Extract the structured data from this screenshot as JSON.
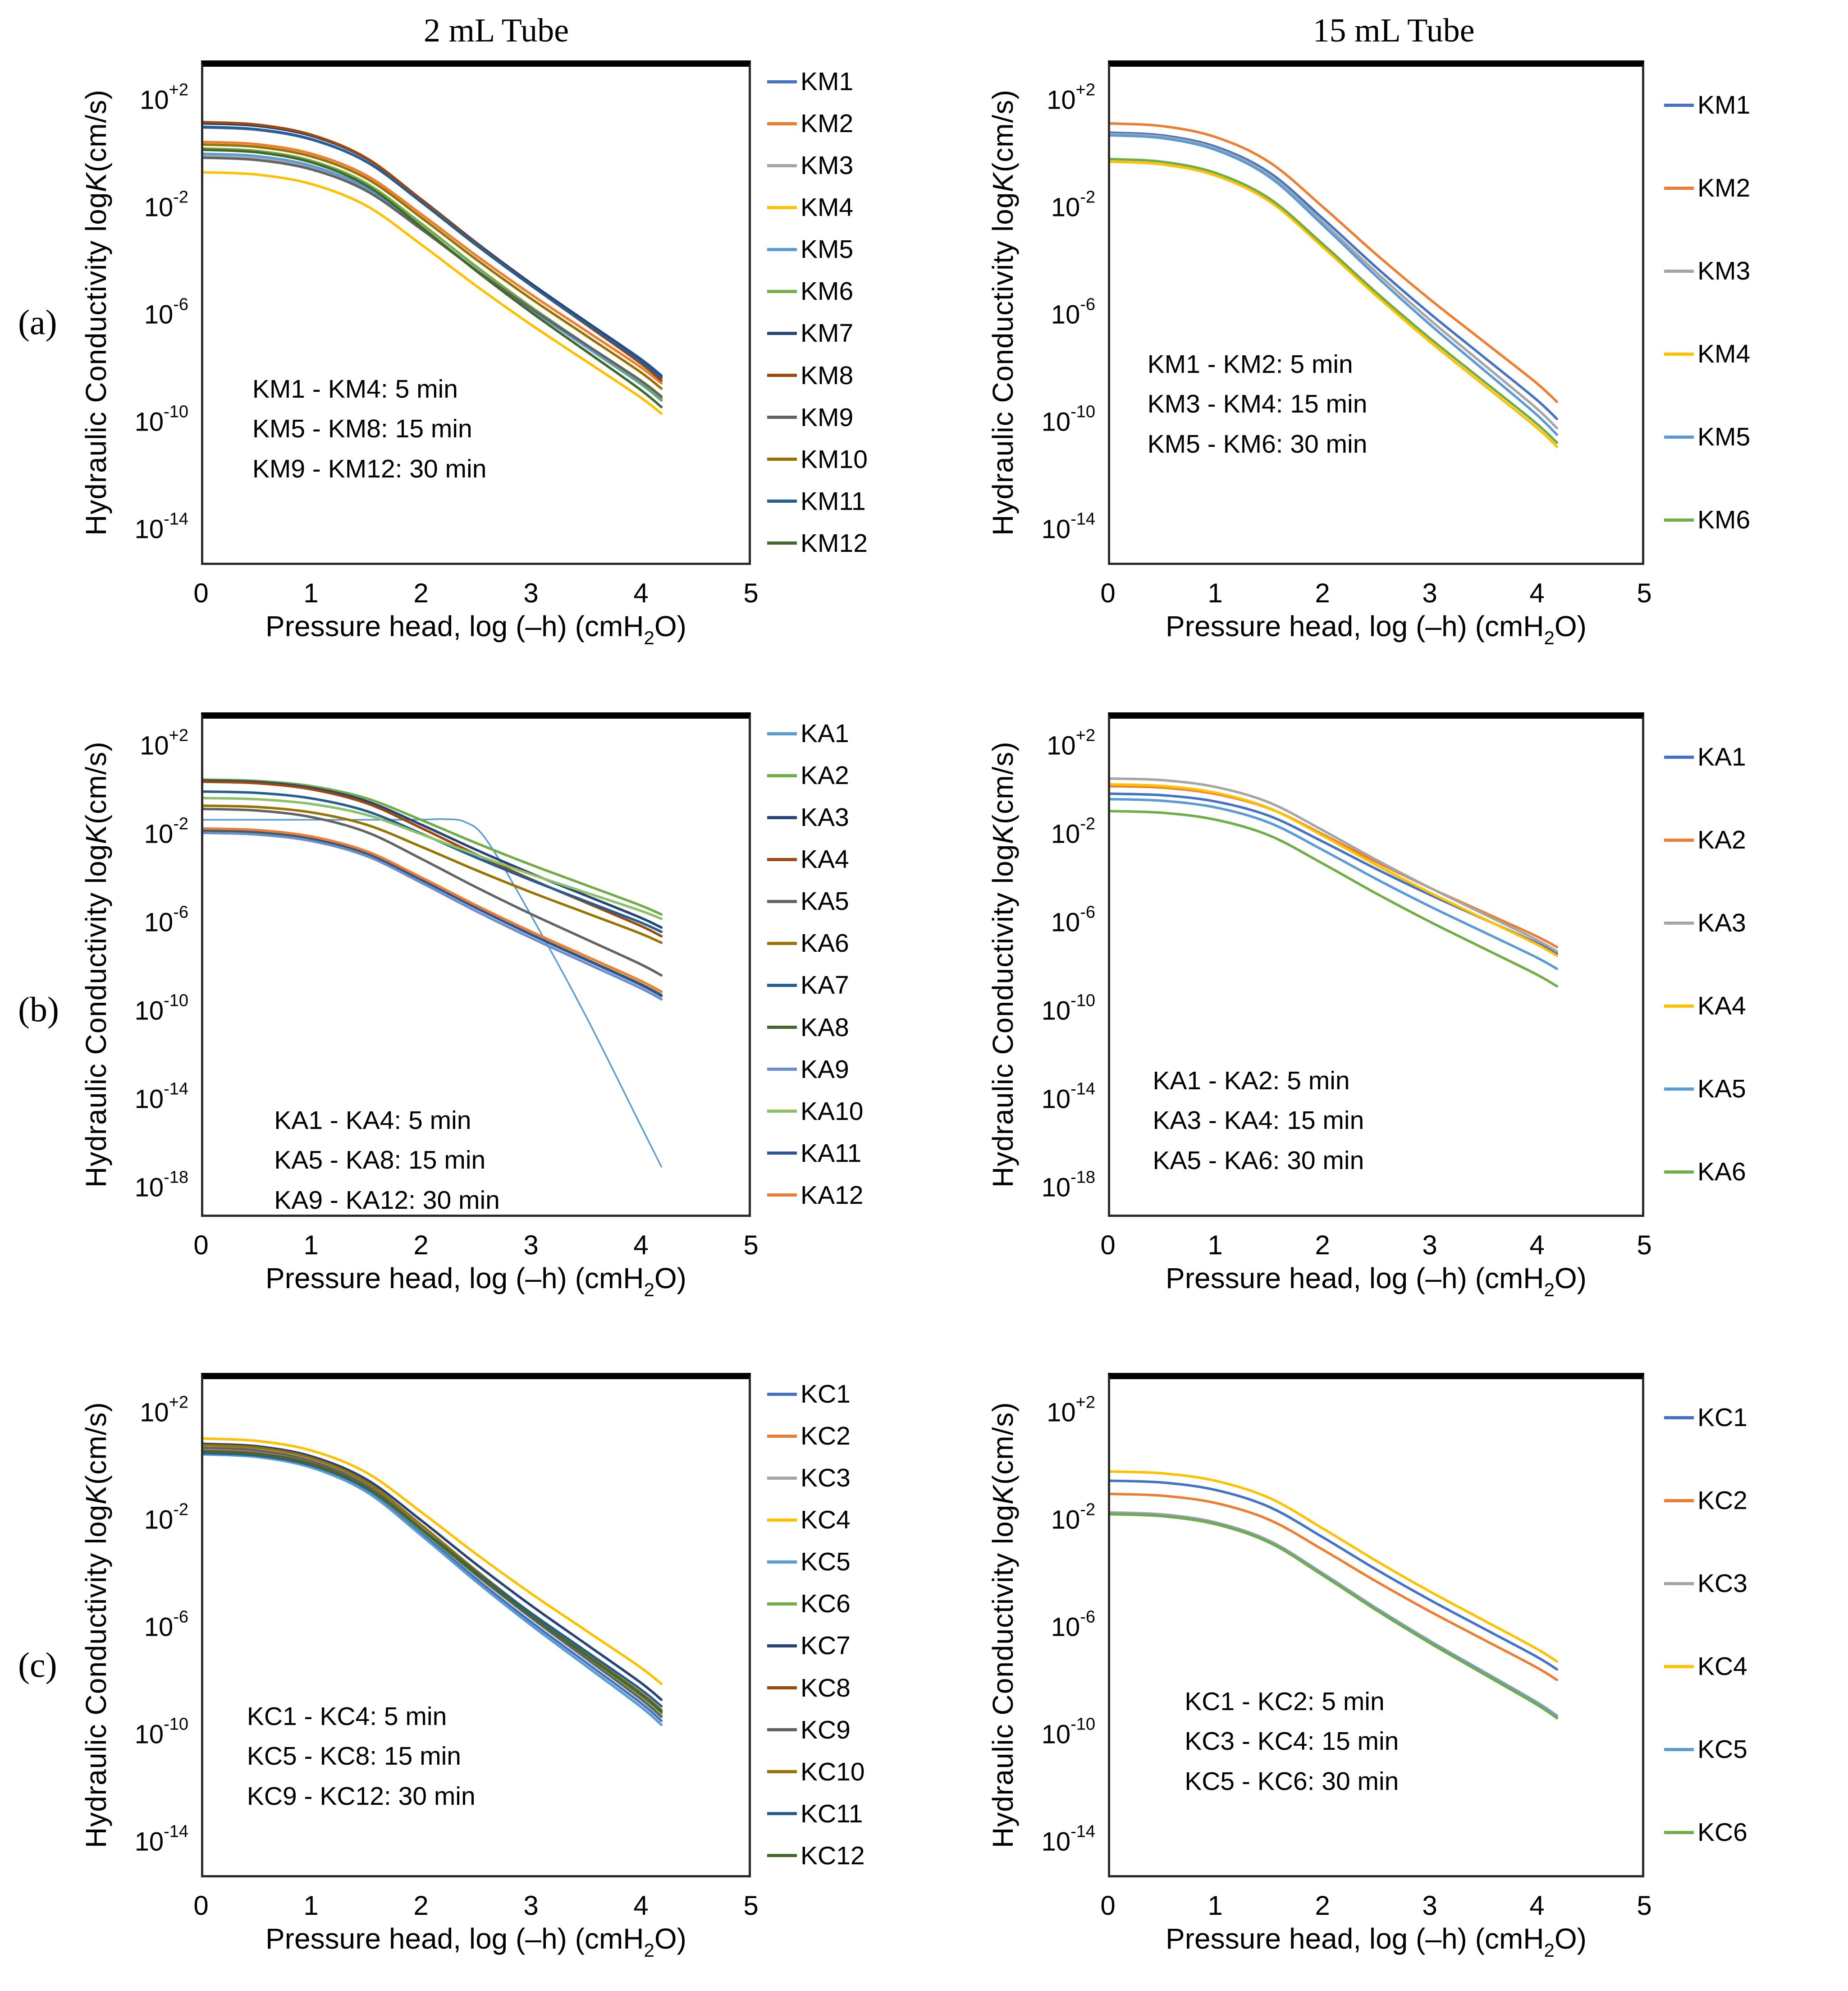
{
  "page": {
    "background": "#ffffff"
  },
  "panels": [
    "(a)",
    "(b)",
    "(c)"
  ],
  "column_titles": {
    "left": "2 mL Tube",
    "right": "15 mL Tube"
  },
  "axis": {
    "ylabel_parts": [
      "Hydraulic Conductivity log ",
      "K",
      " (cm/s)"
    ],
    "xlabel_parts": [
      "Pressure head, log (–h) (cmH",
      "2",
      "O)"
    ]
  },
  "chart_data": [
    {
      "id": "a-left",
      "type": "line",
      "title": "2 mL Tube",
      "ylabel": "Hydraulic Conductivity log K (cm/s)",
      "xlabel": "Pressure head, log (–h) (cmH2O)",
      "x_ticks": [
        0,
        1,
        2,
        3,
        4,
        5
      ],
      "x_domain": [
        0,
        5
      ],
      "y_tick_exponents": [
        "+2",
        "-2",
        "-6",
        "-10",
        "-14"
      ],
      "y_domain_exp": [
        3.4,
        -15.4
      ],
      "x_grid": [
        0,
        0.5,
        1,
        1.5,
        2,
        2.5,
        3,
        3.5,
        4,
        4.2
      ],
      "shape_fractions": [
        0,
        0.01,
        0.05,
        0.14,
        0.3,
        0.47,
        0.63,
        0.78,
        0.93,
        1
      ],
      "annotation": [
        "KM1 - KM4: 5 min",
        "KM5 - KM8: 15 min",
        "KM9 - KM12: 30 min"
      ],
      "annotation_pos": {
        "left": "9%",
        "top": "61%"
      },
      "series": [
        {
          "name": "KM1",
          "color": "#4472C4",
          "plateau_logK": 1.1,
          "end_logK": -8.3
        },
        {
          "name": "KM2",
          "color": "#ED7D31",
          "plateau_logK": 0.55,
          "end_logK": -8.6
        },
        {
          "name": "KM3",
          "color": "#A5A5A5",
          "plateau_logK": 0.0,
          "end_logK": -9.15
        },
        {
          "name": "KM4",
          "color": "#FFC000",
          "plateau_logK": -0.6,
          "end_logK": -9.75
        },
        {
          "name": "KM5",
          "color": "#5B9BD5",
          "plateau_logK": 0.1,
          "end_logK": -9.25
        },
        {
          "name": "KM6",
          "color": "#70AD47",
          "plateau_logK": 0.3,
          "end_logK": -9.2
        },
        {
          "name": "KM7",
          "color": "#264478",
          "plateau_logK": 1.25,
          "end_logK": -8.35
        },
        {
          "name": "KM8",
          "color": "#9E480E",
          "plateau_logK": 1.3,
          "end_logK": -8.5
        },
        {
          "name": "KM9",
          "color": "#636363",
          "plateau_logK": -0.05,
          "end_logK": -9.1
        },
        {
          "name": "KM10",
          "color": "#997300",
          "plateau_logK": 0.45,
          "end_logK": -8.8
        },
        {
          "name": "KM11",
          "color": "#255E91",
          "plateau_logK": 1.12,
          "end_logK": -8.4
        },
        {
          "name": "KM12",
          "color": "#43682B",
          "plateau_logK": 0.25,
          "end_logK": -9.5
        }
      ]
    },
    {
      "id": "a-right",
      "type": "line",
      "title": "15 mL Tube",
      "ylabel": "Hydraulic Conductivity log K (cm/s)",
      "xlabel": "Pressure head, log (–h) (cmH2O)",
      "x_ticks": [
        0,
        1,
        2,
        3,
        4,
        5
      ],
      "x_domain": [
        0,
        5
      ],
      "y_tick_exponents": [
        "+2",
        "-2",
        "-6",
        "-10",
        "-14"
      ],
      "y_domain_exp": [
        3.4,
        -15.4
      ],
      "x_grid": [
        0,
        0.5,
        1,
        1.5,
        2,
        2.5,
        3,
        3.5,
        4,
        4.2
      ],
      "shape_fractions": [
        0,
        0.01,
        0.05,
        0.14,
        0.3,
        0.47,
        0.63,
        0.78,
        0.93,
        1
      ],
      "annotation": [
        "KM1 - KM2: 5 min",
        "KM3 - KM4: 15 min",
        "KM5 - KM6: 30 min"
      ],
      "annotation_pos": {
        "left": "7%",
        "top": "56%"
      },
      "series": [
        {
          "name": "KM1",
          "color": "#4472C4",
          "plateau_logK": 0.9,
          "end_logK": -9.95
        },
        {
          "name": "KM2",
          "color": "#ED7D31",
          "plateau_logK": 1.25,
          "end_logK": -9.3
        },
        {
          "name": "KM3",
          "color": "#A5A5A5",
          "plateau_logK": 0.85,
          "end_logK": -10.3
        },
        {
          "name": "KM4",
          "color": "#FFC000",
          "plateau_logK": -0.2,
          "end_logK": -11.0
        },
        {
          "name": "KM5",
          "color": "#5B9BD5",
          "plateau_logK": 0.8,
          "end_logK": -10.55
        },
        {
          "name": "KM6",
          "color": "#70AD47",
          "plateau_logK": -0.1,
          "end_logK": -10.85
        }
      ]
    },
    {
      "id": "b-left",
      "type": "line",
      "title": "",
      "ylabel": "Hydraulic Conductivity log K (cm/s)",
      "xlabel": "Pressure head, log (–h) (cmH2O)",
      "x_ticks": [
        0,
        1,
        2,
        3,
        4,
        5
      ],
      "x_domain": [
        0,
        5
      ],
      "y_tick_exponents": [
        "+2",
        "-2",
        "-6",
        "-10",
        "-14",
        "-18"
      ],
      "y_domain_exp": [
        3.4,
        -19.4
      ],
      "x_grid": [
        0,
        0.5,
        1,
        1.5,
        2,
        2.5,
        3,
        3.5,
        4,
        4.2
      ],
      "shape_fractions": [
        0,
        0.01,
        0.05,
        0.14,
        0.3,
        0.47,
        0.63,
        0.78,
        0.93,
        1
      ],
      "annotation": [
        "KA1 - KA4: 5 min",
        "KA5 - KA8: 15 min",
        "KA9 - KA12: 30 min"
      ],
      "annotation_pos": {
        "left": "13%",
        "top": "77%"
      },
      "series": [
        {
          "name": "KA1",
          "color": "#5B9BD5",
          "line_width": 3.5,
          "points_x": [
            0,
            0.5,
            1,
            1.5,
            2,
            2.2,
            2.4,
            2.6,
            3,
            3.5,
            4,
            4.2
          ],
          "points_y": [
            -1.25,
            -1.25,
            -1.25,
            -1.25,
            -1.24,
            -1.22,
            -1.35,
            -2.2,
            -5.6,
            -10.2,
            -15.2,
            -17.2
          ]
        },
        {
          "name": "KA2",
          "color": "#70AD47",
          "plateau_logK": 0.6,
          "end_logK": -5.6
        },
        {
          "name": "KA3",
          "color": "#264478",
          "plateau_logK": 0.55,
          "end_logK": -6.2
        },
        {
          "name": "KA4",
          "color": "#9E480E",
          "plateau_logK": 0.5,
          "end_logK": -6.6
        },
        {
          "name": "KA5",
          "color": "#636363",
          "plateau_logK": -0.75,
          "end_logK": -8.4
        },
        {
          "name": "KA6",
          "color": "#997300",
          "plateau_logK": -0.6,
          "end_logK": -6.9
        },
        {
          "name": "KA7",
          "color": "#255E91",
          "plateau_logK": 0.05,
          "end_logK": -6.4
        },
        {
          "name": "KA8",
          "color": "#43682B",
          "plateau_logK": -1.75,
          "end_logK": -9.3
        },
        {
          "name": "KA9",
          "color": "#698ED0",
          "plateau_logK": -1.85,
          "end_logK": -9.5
        },
        {
          "name": "KA10",
          "color": "#8CC168",
          "plateau_logK": -0.25,
          "end_logK": -5.8
        },
        {
          "name": "KA11",
          "color": "#2F5597",
          "plateau_logK": -1.7,
          "end_logK": -9.35
        },
        {
          "name": "KA12",
          "color": "#ED7D31",
          "plateau_logK": -1.65,
          "end_logK": -9.15
        }
      ]
    },
    {
      "id": "b-right",
      "type": "line",
      "title": "",
      "ylabel": "Hydraulic Conductivity log K (cm/s)",
      "xlabel": "Pressure head, log (–h) (cmH2O)",
      "x_ticks": [
        0,
        1,
        2,
        3,
        4,
        5
      ],
      "x_domain": [
        0,
        5
      ],
      "y_tick_exponents": [
        "+2",
        "-2",
        "-6",
        "-10",
        "-14",
        "-18"
      ],
      "y_domain_exp": [
        3.4,
        -19.4
      ],
      "x_grid": [
        0,
        0.5,
        1,
        1.5,
        2,
        2.5,
        3,
        3.5,
        4,
        4.2
      ],
      "shape_fractions": [
        0,
        0.01,
        0.05,
        0.14,
        0.3,
        0.47,
        0.63,
        0.78,
        0.93,
        1
      ],
      "annotation": [
        "KA1 - KA2: 5 min",
        "KA3 - KA4: 15 min",
        "KA5 - KA6: 30 min"
      ],
      "annotation_pos": {
        "left": "8%",
        "top": "69%"
      },
      "series": [
        {
          "name": "KA1",
          "color": "#4472C4",
          "plateau_logK": -0.05,
          "end_logK": -7.4
        },
        {
          "name": "KA2",
          "color": "#ED7D31",
          "plateau_logK": 0.3,
          "end_logK": -7.1
        },
        {
          "name": "KA3",
          "color": "#A5A5A5",
          "plateau_logK": 0.65,
          "end_logK": -7.3
        },
        {
          "name": "KA4",
          "color": "#FFC000",
          "plateau_logK": 0.38,
          "end_logK": -7.5
        },
        {
          "name": "KA5",
          "color": "#5B9BD5",
          "plateau_logK": -0.3,
          "end_logK": -8.1
        },
        {
          "name": "KA6",
          "color": "#70AD47",
          "plateau_logK": -0.85,
          "end_logK": -8.9
        }
      ]
    },
    {
      "id": "c-left",
      "type": "line",
      "title": "",
      "ylabel": "Hydraulic Conductivity log K (cm/s)",
      "xlabel": "Pressure head, log (–h) (cmH2O)",
      "x_ticks": [
        0,
        1,
        2,
        3,
        4,
        5
      ],
      "x_domain": [
        0,
        5
      ],
      "y_tick_exponents": [
        "+2",
        "-2",
        "-6",
        "-10",
        "-14"
      ],
      "y_domain_exp": [
        3.4,
        -15.4
      ],
      "x_grid": [
        0,
        0.5,
        1,
        1.5,
        2,
        2.5,
        3,
        3.5,
        4,
        4.2
      ],
      "shape_fractions": [
        0,
        0.01,
        0.05,
        0.14,
        0.3,
        0.47,
        0.63,
        0.78,
        0.93,
        1
      ],
      "annotation": [
        "KC1 - KC4: 5 min",
        "KC5 - KC8: 15 min",
        "KC9 - KC12: 30 min"
      ],
      "annotation_pos": {
        "left": "8%",
        "top": "64%"
      },
      "series": [
        {
          "name": "KC1",
          "color": "#4472C4",
          "plateau_logK": 0.62,
          "end_logK": -9.55
        },
        {
          "name": "KC2",
          "color": "#ED7D31",
          "plateau_logK": 0.66,
          "end_logK": -9.3
        },
        {
          "name": "KC3",
          "color": "#A5A5A5",
          "plateau_logK": 0.75,
          "end_logK": -9.35
        },
        {
          "name": "KC4",
          "color": "#FFC000",
          "plateau_logK": 1.15,
          "end_logK": -8.15
        },
        {
          "name": "KC5",
          "color": "#5B9BD5",
          "plateau_logK": 0.55,
          "end_logK": -9.7
        },
        {
          "name": "KC6",
          "color": "#70AD47",
          "plateau_logK": 0.64,
          "end_logK": -9.25
        },
        {
          "name": "KC7",
          "color": "#264478",
          "plateau_logK": 0.95,
          "end_logK": -8.75
        },
        {
          "name": "KC8",
          "color": "#9E480E",
          "plateau_logK": 0.68,
          "end_logK": -9.15
        },
        {
          "name": "KC9",
          "color": "#636363",
          "plateau_logK": 0.8,
          "end_logK": -9.4
        },
        {
          "name": "KC10",
          "color": "#997300",
          "plateau_logK": 0.9,
          "end_logK": -9.2
        },
        {
          "name": "KC11",
          "color": "#255E91",
          "plateau_logK": 0.6,
          "end_logK": -9.0
        },
        {
          "name": "KC12",
          "color": "#43682B",
          "plateau_logK": 0.66,
          "end_logK": -9.2
        }
      ]
    },
    {
      "id": "c-right",
      "type": "line",
      "title": "",
      "ylabel": "Hydraulic Conductivity log K (cm/s)",
      "xlabel": "Pressure head, log (–h) (cmH2O)",
      "x_ticks": [
        0,
        1,
        2,
        3,
        4,
        5
      ],
      "x_domain": [
        0,
        5
      ],
      "y_tick_exponents": [
        "+2",
        "-2",
        "-6",
        "-10",
        "-14"
      ],
      "y_domain_exp": [
        3.4,
        -15.4
      ],
      "x_grid": [
        0,
        0.5,
        1,
        1.5,
        2,
        2.5,
        3,
        3.5,
        4,
        4.2
      ],
      "shape_fractions": [
        0,
        0.01,
        0.05,
        0.14,
        0.3,
        0.47,
        0.63,
        0.78,
        0.93,
        1
      ],
      "annotation": [
        "KC1 - KC2: 5 min",
        "KC3 - KC4: 15 min",
        "KC5 - KC6: 30 min"
      ],
      "annotation_pos": {
        "left": "14%",
        "top": "61%"
      },
      "series": [
        {
          "name": "KC1",
          "color": "#4472C4",
          "plateau_logK": -0.45,
          "end_logK": -7.6
        },
        {
          "name": "KC2",
          "color": "#ED7D31",
          "plateau_logK": -0.95,
          "end_logK": -8.0
        },
        {
          "name": "KC3",
          "color": "#A5A5A5",
          "plateau_logK": -1.65,
          "end_logK": -9.35
        },
        {
          "name": "KC4",
          "color": "#FFC000",
          "plateau_logK": -0.1,
          "end_logK": -7.3
        },
        {
          "name": "KC5",
          "color": "#5B9BD5",
          "plateau_logK": -1.7,
          "end_logK": -9.4
        },
        {
          "name": "KC6",
          "color": "#70AD47",
          "plateau_logK": -1.72,
          "end_logK": -9.45
        }
      ]
    }
  ]
}
